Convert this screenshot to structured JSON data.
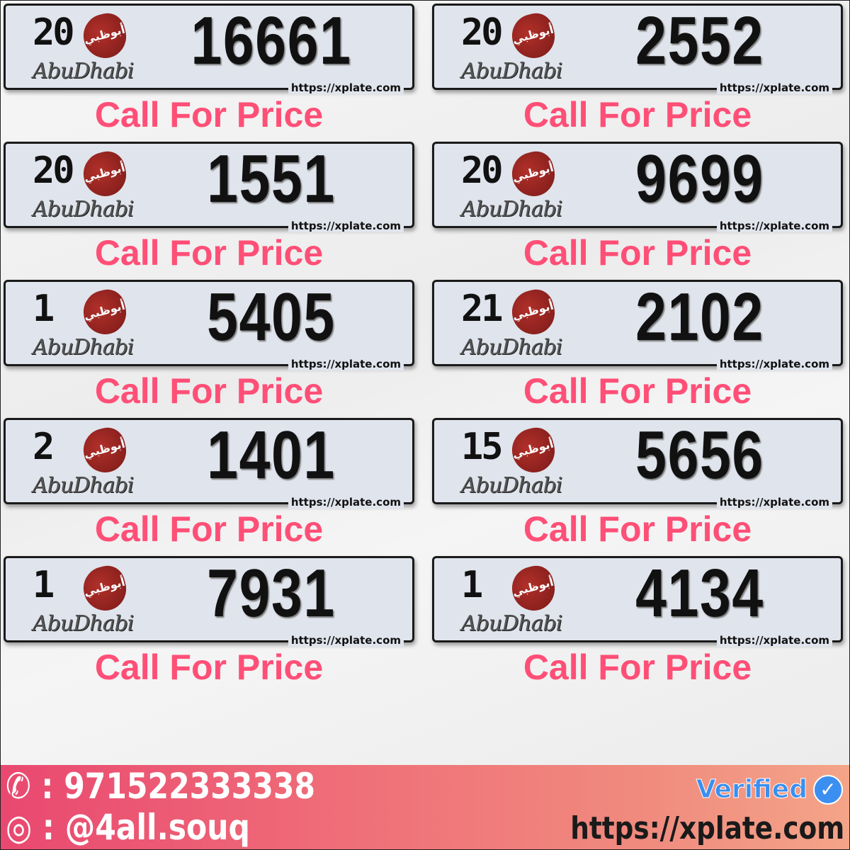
{
  "plates": [
    {
      "code": "20",
      "number": "16661",
      "price": "Call For Price"
    },
    {
      "code": "20",
      "number": "2552",
      "price": "Call For Price"
    },
    {
      "code": "20",
      "number": "1551",
      "price": "Call For Price"
    },
    {
      "code": "20",
      "number": "9699",
      "price": "Call For Price"
    },
    {
      "code": "1",
      "number": "5405",
      "price": "Call For Price"
    },
    {
      "code": "21",
      "number": "2102",
      "price": "Call For Price"
    },
    {
      "code": "2",
      "number": "1401",
      "price": "Call For Price"
    },
    {
      "code": "15",
      "number": "5656",
      "price": "Call For Price"
    },
    {
      "code": "1",
      "number": "7931",
      "price": "Call For Price"
    },
    {
      "code": "1",
      "number": "4134",
      "price": "Call For Price"
    }
  ],
  "plate_city": "AbuDhabi",
  "plate_logo_text": "أبوظبي",
  "plate_watermark": "https://xplate.com",
  "footer": {
    "phone": ": 971522333338",
    "instagram": ": @4all.souq",
    "verified": "Verified",
    "url": "https://xplate.com",
    "phone_icon": "phone-icon",
    "instagram_icon": "instagram-icon"
  },
  "colors": {
    "price": "#ff4f77",
    "verified": "#3b8ff0",
    "footer_start": "#e94870",
    "footer_end": "#f4a488"
  }
}
